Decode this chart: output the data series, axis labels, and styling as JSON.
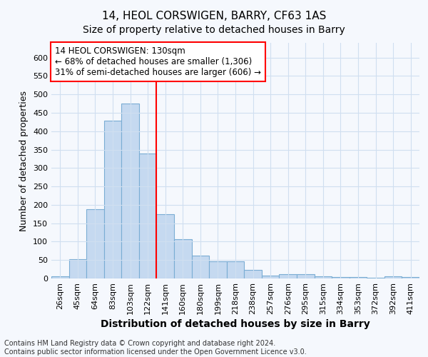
{
  "title": "14, HEOL CORSWIGEN, BARRY, CF63 1AS",
  "subtitle": "Size of property relative to detached houses in Barry",
  "xlabel": "Distribution of detached houses by size in Barry",
  "ylabel": "Number of detached properties",
  "categories": [
    "26sqm",
    "45sqm",
    "64sqm",
    "83sqm",
    "103sqm",
    "122sqm",
    "141sqm",
    "160sqm",
    "180sqm",
    "199sqm",
    "218sqm",
    "238sqm",
    "257sqm",
    "276sqm",
    "295sqm",
    "315sqm",
    "334sqm",
    "353sqm",
    "372sqm",
    "392sqm",
    "411sqm"
  ],
  "values": [
    5,
    52,
    188,
    428,
    475,
    340,
    174,
    107,
    62,
    47,
    46,
    23,
    8,
    11,
    11,
    5,
    4,
    4,
    2,
    5,
    3
  ],
  "bar_color": "#c5d9f0",
  "bar_edge_color": "#7aadd4",
  "vline_x_index": 5.5,
  "vline_color": "red",
  "annotation_title": "14 HEOL CORSWIGEN: 130sqm",
  "annotation_line1": "← 68% of detached houses are smaller (1,306)",
  "annotation_line2": "31% of semi-detached houses are larger (606) →",
  "annotation_box_facecolor": "white",
  "annotation_box_edgecolor": "red",
  "ylim": [
    0,
    640
  ],
  "yticks": [
    0,
    50,
    100,
    150,
    200,
    250,
    300,
    350,
    400,
    450,
    500,
    550,
    600
  ],
  "footer_line1": "Contains HM Land Registry data © Crown copyright and database right 2024.",
  "footer_line2": "Contains public sector information licensed under the Open Government Licence v3.0.",
  "background_color": "#f5f8fd",
  "grid_color": "#d0dff0",
  "title_fontsize": 11,
  "subtitle_fontsize": 10,
  "tick_fontsize": 8,
  "ylabel_fontsize": 9,
  "xlabel_fontsize": 10,
  "annotation_fontsize": 8.5,
  "footer_fontsize": 7
}
